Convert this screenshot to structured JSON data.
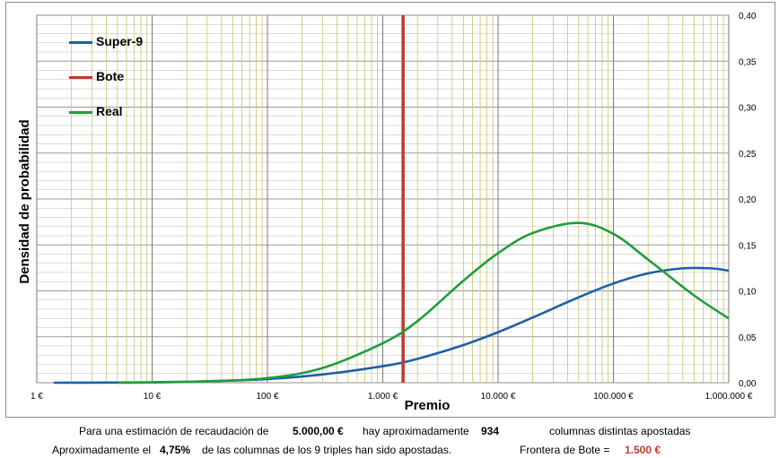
{
  "chart_data": {
    "type": "line",
    "xscale": "log",
    "xlim": [
      1,
      1000000
    ],
    "ylim": [
      0,
      0.4
    ],
    "xlabel": "Premio",
    "ylabel": "Densidad de probabilidad",
    "x_ticks": [
      1,
      10,
      100,
      1000,
      10000,
      100000,
      1000000
    ],
    "x_tick_labels": [
      "1 €",
      "10 €",
      "100 €",
      "1.000 €",
      "10.000 €",
      "100.000 €",
      "1.000.000 €"
    ],
    "y_ticks": [
      0,
      0.05,
      0.1,
      0.15,
      0.2,
      0.25,
      0.3,
      0.35,
      0.4
    ],
    "y_tick_labels": [
      "0,00",
      "0,05",
      "0,10",
      "0,15",
      "0,20",
      "0,25",
      "0,30",
      "0,35",
      "0,40"
    ],
    "y_axis_position": "right",
    "grid": true,
    "legend_position": "top-left",
    "series": [
      {
        "name": "Super-9",
        "color": "#1f5fa8",
        "x": [
          1.4,
          5,
          10,
          30,
          100,
          300,
          1000,
          2000,
          5000,
          10000,
          20000,
          50000,
          100000,
          200000,
          400000,
          700000,
          1000000
        ],
        "y": [
          0.0,
          0.0002,
          0.0005,
          0.0015,
          0.004,
          0.009,
          0.018,
          0.026,
          0.041,
          0.055,
          0.071,
          0.093,
          0.108,
          0.119,
          0.1245,
          0.1245,
          0.122
        ]
      },
      {
        "name": "Bote",
        "color": "#c0392b",
        "x": [
          1500,
          1500
        ],
        "y": [
          0,
          0.4
        ]
      },
      {
        "name": "Real",
        "color": "#1e9e3a",
        "x": [
          5,
          10,
          30,
          100,
          300,
          1000,
          2000,
          5000,
          10000,
          20000,
          50000,
          100000,
          200000,
          500000,
          1000000
        ],
        "y": [
          0.0,
          0.0003,
          0.0015,
          0.005,
          0.016,
          0.043,
          0.067,
          0.111,
          0.141,
          0.163,
          0.174,
          0.162,
          0.134,
          0.095,
          0.07
        ]
      }
    ]
  },
  "footer": {
    "line1_prefix": "Para  una estimación de recaudación de",
    "recaudacion": "5.000,00 €",
    "line1_middle": "hay aproximadamente",
    "columnas": "934",
    "line1_suffix": "columnas distintas apostadas",
    "line2_prefix": "Aproximadamente el",
    "porcentaje": "4,75%",
    "line2_middle": "de las columnas de los 9 triples han sido apostadas.",
    "frontera_label": "Frontera de Bote =",
    "frontera_value": "1.500 €"
  }
}
